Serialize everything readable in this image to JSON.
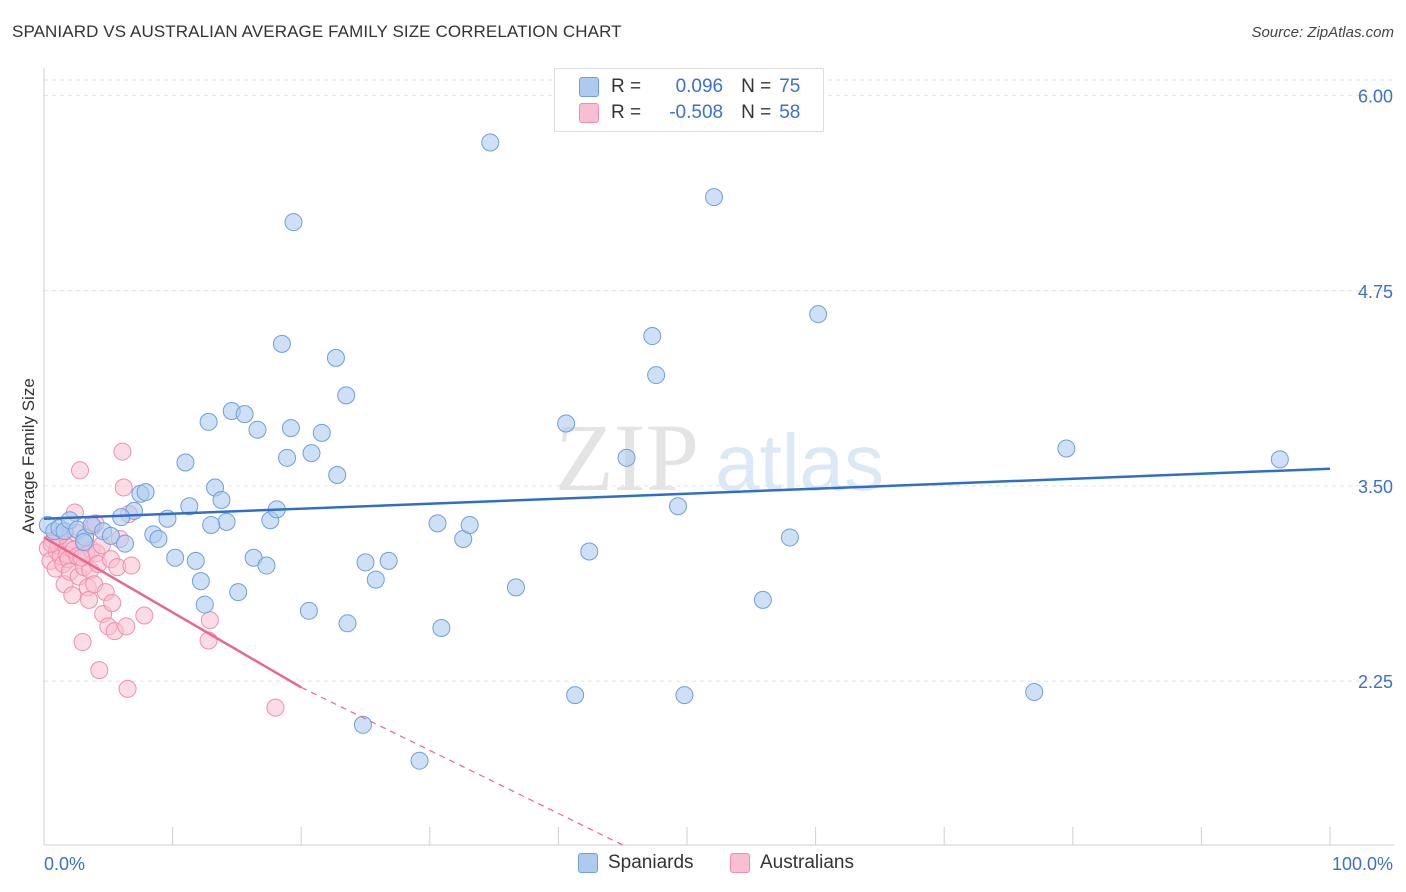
{
  "header": {
    "title": "SPANIARD VS AUSTRALIAN AVERAGE FAMILY SIZE CORRELATION CHART",
    "source": "Source: ZipAtlas.com"
  },
  "watermark": {
    "zip": "ZIP",
    "atlas": "atlas"
  },
  "legend": {
    "r_label": "R =",
    "n_label": "N =",
    "spaniards": {
      "r": "0.096",
      "n": "75"
    },
    "australians": {
      "r": "-0.508",
      "n": "58"
    }
  },
  "colors": {
    "blue_fill": "#aecbef",
    "blue_stroke": "#6f9fdc",
    "blue_line": "#2f6fc9",
    "pink_fill": "#f7bfd0",
    "pink_stroke": "#ee8fae",
    "pink_line": "#e8678f",
    "tick_label": "#3a72c6",
    "grid": "#e2e2e2"
  },
  "chart_data": {
    "type": "scatter",
    "title": "SPANIARD VS AUSTRALIAN AVERAGE FAMILY SIZE CORRELATION CHART",
    "xlabel": "",
    "ylabel": "Average Family Size",
    "xlim": [
      0,
      100
    ],
    "ylim": [
      1.2,
      6.1
    ],
    "x_tick_labels": [
      "0.0%",
      "100.0%"
    ],
    "y_ticks": [
      2.25,
      3.5,
      4.75,
      6.0
    ],
    "y_tick_labels": [
      "2.25",
      "3.50",
      "4.75",
      "6.00"
    ],
    "grid": true,
    "legend_position": "top-center",
    "series": [
      {
        "name": "Spaniards",
        "color": "#aecbef",
        "trend": {
          "x": [
            0,
            100
          ],
          "y": [
            3.29,
            3.61
          ]
        },
        "points": [
          [
            0.3,
            3.25
          ],
          [
            0.8,
            3.21
          ],
          [
            1.2,
            3.23
          ],
          [
            1.6,
            3.21
          ],
          [
            2.0,
            3.28
          ],
          [
            2.6,
            3.22
          ],
          [
            3.2,
            3.17
          ],
          [
            3.7,
            3.25
          ],
          [
            4.6,
            3.21
          ],
          [
            5.2,
            3.18
          ],
          [
            6.3,
            3.13
          ],
          [
            7.0,
            3.34
          ],
          [
            7.5,
            3.45
          ],
          [
            7.9,
            3.46
          ],
          [
            8.5,
            3.19
          ],
          [
            8.9,
            3.16
          ],
          [
            9.6,
            3.29
          ],
          [
            10.2,
            3.04
          ],
          [
            11.0,
            3.65
          ],
          [
            11.3,
            3.37
          ],
          [
            11.8,
            3.02
          ],
          [
            12.2,
            2.89
          ],
          [
            12.5,
            2.74
          ],
          [
            12.8,
            3.91
          ],
          [
            13.3,
            3.49
          ],
          [
            13.8,
            3.41
          ],
          [
            14.2,
            3.27
          ],
          [
            14.6,
            3.98
          ],
          [
            15.1,
            2.82
          ],
          [
            15.6,
            3.96
          ],
          [
            16.3,
            3.04
          ],
          [
            16.6,
            3.86
          ],
          [
            17.3,
            2.99
          ],
          [
            17.6,
            3.28
          ],
          [
            18.1,
            3.35
          ],
          [
            18.5,
            4.41
          ],
          [
            18.9,
            3.68
          ],
          [
            19.2,
            3.87
          ],
          [
            19.4,
            5.19
          ],
          [
            20.6,
            2.7
          ],
          [
            20.8,
            3.71
          ],
          [
            21.6,
            3.84
          ],
          [
            22.7,
            4.32
          ],
          [
            22.8,
            3.57
          ],
          [
            23.5,
            4.08
          ],
          [
            23.6,
            2.62
          ],
          [
            24.8,
            1.97
          ],
          [
            25.0,
            3.01
          ],
          [
            25.8,
            2.9
          ],
          [
            26.8,
            3.02
          ],
          [
            29.2,
            1.74
          ],
          [
            30.6,
            3.26
          ],
          [
            30.9,
            2.59
          ],
          [
            32.6,
            3.16
          ],
          [
            33.1,
            3.25
          ],
          [
            34.7,
            5.7
          ],
          [
            36.7,
            2.85
          ],
          [
            40.6,
            3.9
          ],
          [
            41.3,
            2.16
          ],
          [
            42.4,
            3.08
          ],
          [
            45.3,
            3.68
          ],
          [
            47.3,
            4.46
          ],
          [
            47.6,
            4.21
          ],
          [
            49.3,
            3.37
          ],
          [
            49.8,
            2.16
          ],
          [
            52.1,
            5.35
          ],
          [
            55.9,
            2.77
          ],
          [
            58.0,
            3.17
          ],
          [
            60.2,
            4.6
          ],
          [
            77.0,
            2.18
          ],
          [
            79.5,
            3.74
          ],
          [
            96.1,
            3.67
          ],
          [
            3.1,
            3.14
          ],
          [
            13.0,
            3.25
          ],
          [
            6.0,
            3.3
          ]
        ]
      },
      {
        "name": "Australians",
        "color": "#f7bfd0",
        "trend": {
          "x": [
            0,
            20
          ],
          "y": [
            3.17,
            2.21
          ]
        },
        "trend_dashed": {
          "x": [
            20,
            45
          ],
          "y": [
            2.21,
            1.2
          ]
        },
        "points": [
          [
            0.3,
            3.1
          ],
          [
            0.5,
            3.02
          ],
          [
            0.7,
            3.15
          ],
          [
            0.9,
            2.97
          ],
          [
            1.0,
            3.08
          ],
          [
            1.1,
            3.12
          ],
          [
            1.3,
            3.05
          ],
          [
            1.4,
            3.19
          ],
          [
            1.5,
            3.0
          ],
          [
            1.6,
            2.87
          ],
          [
            1.7,
            3.11
          ],
          [
            1.8,
            3.06
          ],
          [
            1.9,
            3.03
          ],
          [
            2.0,
            2.95
          ],
          [
            2.1,
            3.14
          ],
          [
            2.2,
            2.8
          ],
          [
            2.3,
            3.09
          ],
          [
            2.4,
            3.33
          ],
          [
            2.5,
            3.2
          ],
          [
            2.6,
            3.05
          ],
          [
            2.7,
            2.92
          ],
          [
            2.8,
            3.6
          ],
          [
            3.0,
            2.5
          ],
          [
            3.1,
            2.98
          ],
          [
            3.2,
            3.13
          ],
          [
            3.3,
            3.06
          ],
          [
            3.4,
            2.85
          ],
          [
            3.5,
            2.77
          ],
          [
            3.6,
            2.96
          ],
          [
            3.7,
            3.09
          ],
          [
            3.8,
            3.24
          ],
          [
            3.9,
            2.87
          ],
          [
            4.1,
            3.07
          ],
          [
            4.2,
            3.0
          ],
          [
            4.3,
            2.32
          ],
          [
            4.5,
            3.12
          ],
          [
            4.6,
            2.68
          ],
          [
            4.8,
            2.82
          ],
          [
            5.0,
            2.6
          ],
          [
            5.2,
            3.03
          ],
          [
            5.3,
            2.75
          ],
          [
            5.5,
            2.57
          ],
          [
            5.7,
            2.98
          ],
          [
            5.9,
            3.16
          ],
          [
            6.1,
            3.72
          ],
          [
            6.2,
            3.49
          ],
          [
            6.4,
            2.6
          ],
          [
            6.5,
            2.2
          ],
          [
            6.6,
            3.32
          ],
          [
            6.8,
            2.99
          ],
          [
            7.8,
            2.67
          ],
          [
            12.8,
            2.51
          ],
          [
            12.9,
            2.64
          ],
          [
            18.0,
            2.08
          ],
          [
            1.2,
            3.18
          ],
          [
            2.9,
            3.04
          ],
          [
            4.0,
            3.26
          ],
          [
            0.6,
            3.13
          ]
        ]
      }
    ]
  },
  "bottom_legend": {
    "spaniards": "Spaniards",
    "australians": "Australians"
  }
}
